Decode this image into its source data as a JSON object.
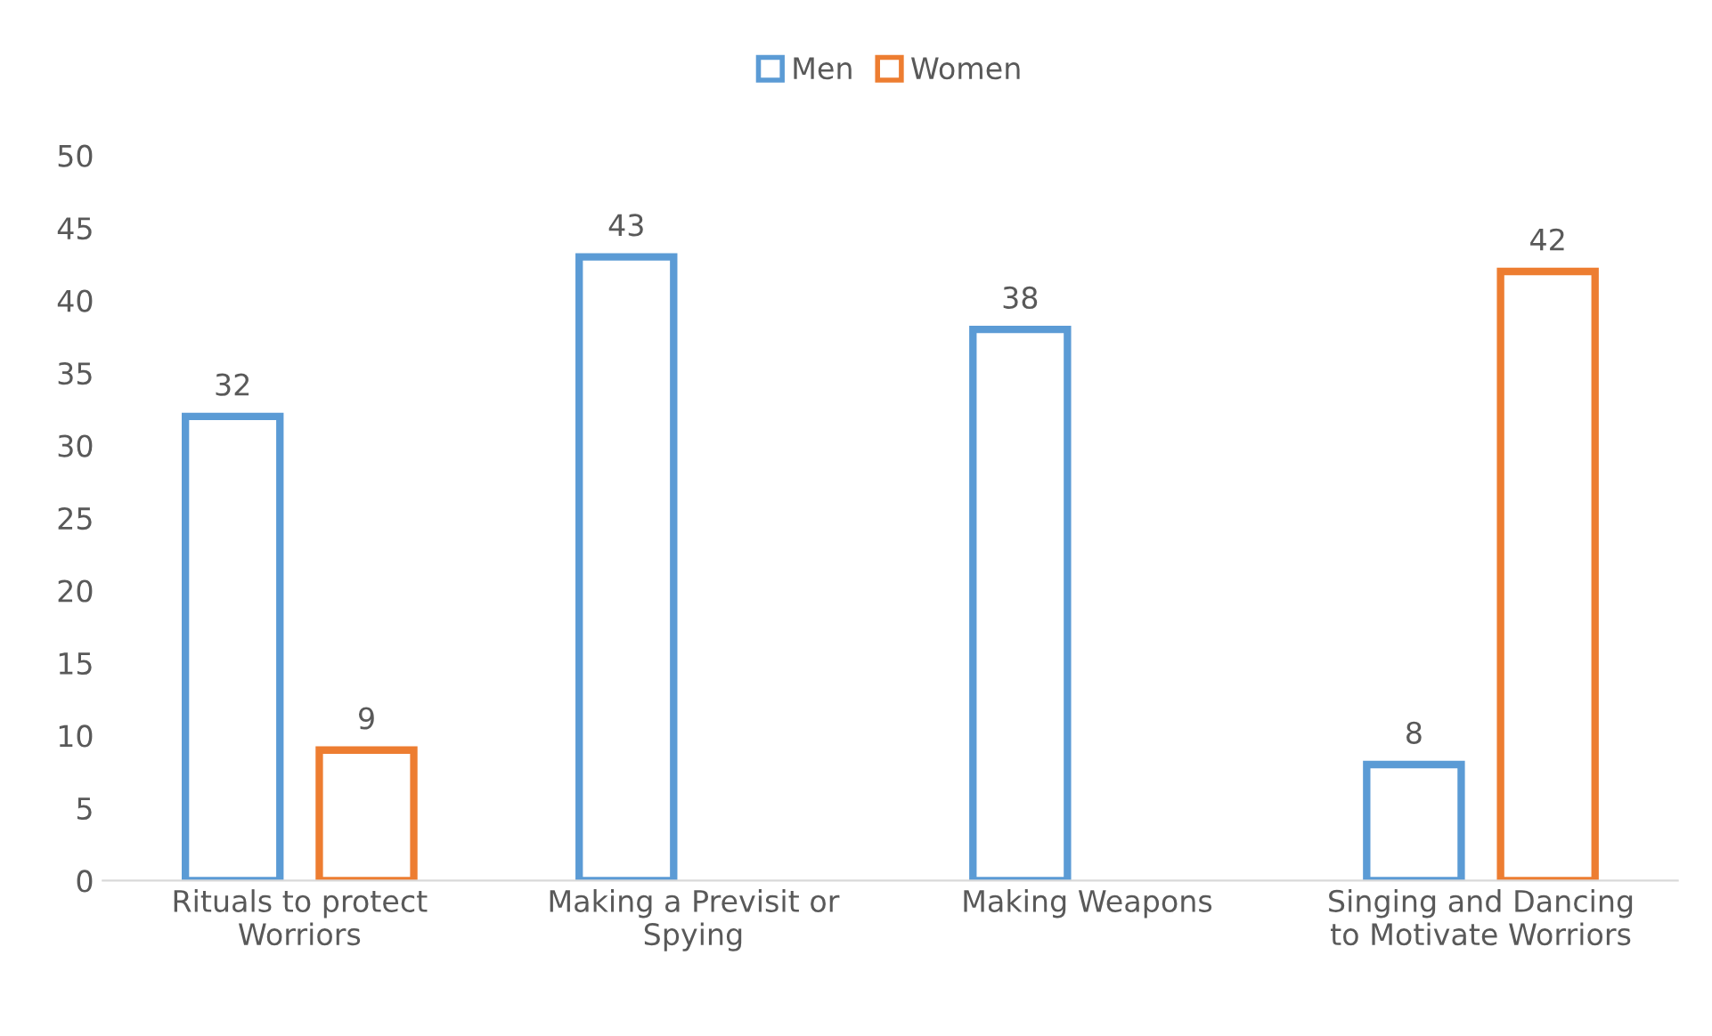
{
  "chart_data": {
    "type": "bar",
    "categories": [
      "Rituals to protect\nWorriors",
      "Making a Previsit or\nSpying",
      "Making Weapons",
      "Singing and Dancing\nto Motivate Worriors"
    ],
    "series": [
      {
        "name": "Men",
        "color": "#5b9bd5",
        "values": [
          32,
          43,
          38,
          8
        ]
      },
      {
        "name": "Women",
        "color": "#ed7d31",
        "values": [
          9,
          null,
          null,
          42
        ]
      }
    ],
    "ylim": [
      0,
      50
    ],
    "yticks": [
      0,
      5,
      10,
      15,
      20,
      25,
      30,
      35,
      40,
      45,
      50
    ],
    "data_labels": true,
    "legend": "top",
    "grid": false
  }
}
